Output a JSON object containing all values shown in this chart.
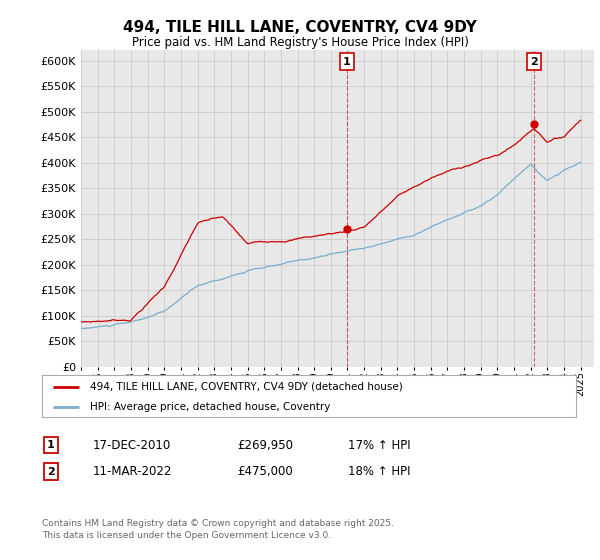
{
  "title": "494, TILE HILL LANE, COVENTRY, CV4 9DY",
  "subtitle": "Price paid vs. HM Land Registry's House Price Index (HPI)",
  "ytick_values": [
    0,
    50000,
    100000,
    150000,
    200000,
    250000,
    300000,
    350000,
    400000,
    450000,
    500000,
    550000,
    600000
  ],
  "ylim": [
    0,
    620000
  ],
  "x_start_year": 1995,
  "x_end_year": 2025,
  "marker1_year": 2010.96,
  "marker1_price": 269950,
  "marker1_date_str": "17-DEC-2010",
  "marker1_hpi_str": "17% ↑ HPI",
  "marker2_year": 2022.2,
  "marker2_price": 475000,
  "marker2_date_str": "11-MAR-2022",
  "marker2_hpi_str": "18% ↑ HPI",
  "red_line_color": "#cc0000",
  "blue_line_color": "#7aadcc",
  "grid_color": "#cccccc",
  "plot_bg_color": "#e8e8e8",
  "fig_bg_color": "#ffffff",
  "legend_label_red": "494, TILE HILL LANE, COVENTRY, CV4 9DY (detached house)",
  "legend_label_blue": "HPI: Average price, detached house, Coventry",
  "footer_text": "Contains HM Land Registry data © Crown copyright and database right 2025.\nThis data is licensed under the Open Government Licence v3.0.",
  "vline_color": "#cc0000"
}
